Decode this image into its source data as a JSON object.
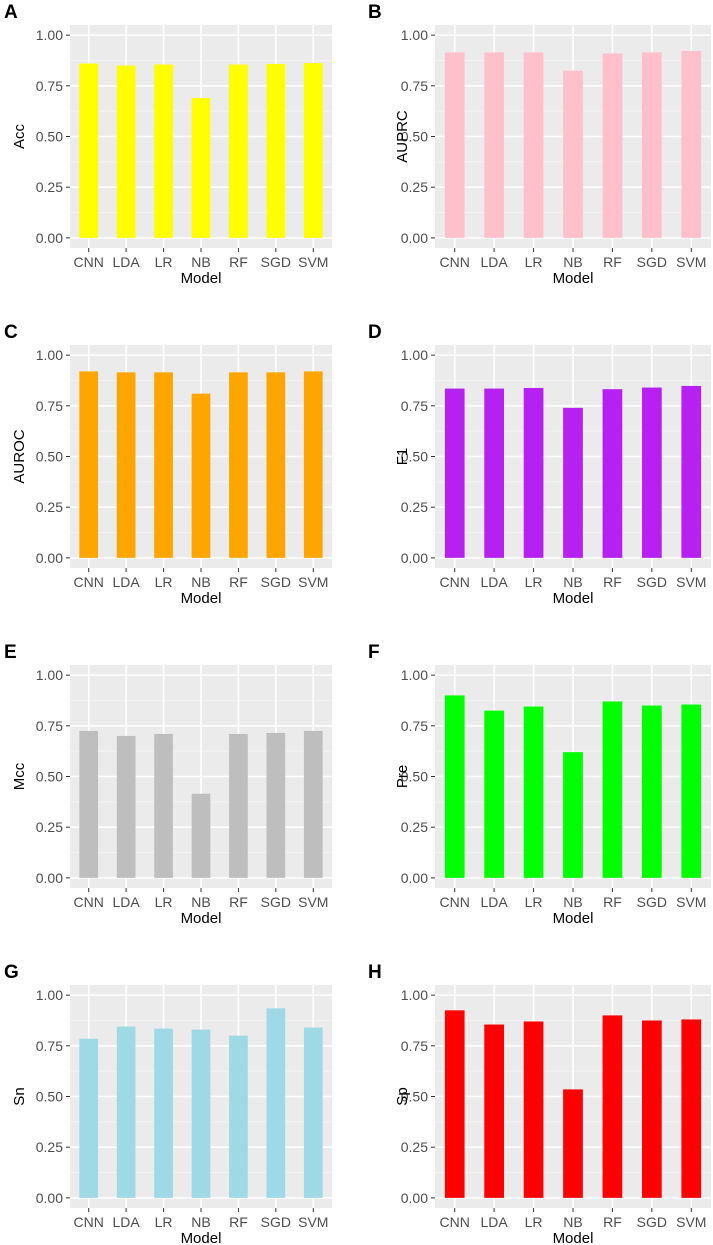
{
  "chart_data": [
    {
      "panel": "A",
      "type": "bar",
      "ylabel": "Acc",
      "xlabel": "Model",
      "color": "#ffff00",
      "categories": [
        "CNN",
        "LDA",
        "LR",
        "NB",
        "RF",
        "SGD",
        "SVM"
      ],
      "values": [
        0.86,
        0.85,
        0.855,
        0.69,
        0.855,
        0.858,
        0.862
      ],
      "ylim": [
        0,
        1
      ],
      "yticks": [
        "0.00",
        "0.25",
        "0.50",
        "0.75",
        "1.00"
      ]
    },
    {
      "panel": "B",
      "type": "bar",
      "ylabel": "AUPRC",
      "xlabel": "Model",
      "color": "#ffc0cb",
      "categories": [
        "CNN",
        "LDA",
        "LR",
        "NB",
        "RF",
        "SGD",
        "SVM"
      ],
      "values": [
        0.915,
        0.915,
        0.915,
        0.825,
        0.91,
        0.915,
        0.922
      ],
      "ylim": [
        0,
        1
      ],
      "yticks": [
        "0.00",
        "0.25",
        "0.50",
        "0.75",
        "1.00"
      ]
    },
    {
      "panel": "C",
      "type": "bar",
      "ylabel": "AUROC",
      "xlabel": "Model",
      "color": "#ffa500",
      "categories": [
        "CNN",
        "LDA",
        "LR",
        "NB",
        "RF",
        "SGD",
        "SVM"
      ],
      "values": [
        0.92,
        0.915,
        0.915,
        0.81,
        0.915,
        0.915,
        0.92
      ],
      "ylim": [
        0,
        1
      ],
      "yticks": [
        "0.00",
        "0.25",
        "0.50",
        "0.75",
        "1.00"
      ]
    },
    {
      "panel": "D",
      "type": "bar",
      "ylabel": "F1",
      "xlabel": "Model",
      "color": "#b620f0",
      "categories": [
        "CNN",
        "LDA",
        "LR",
        "NB",
        "RF",
        "SGD",
        "SVM"
      ],
      "values": [
        0.835,
        0.835,
        0.838,
        0.74,
        0.832,
        0.84,
        0.848
      ],
      "ylim": [
        0,
        1
      ],
      "yticks": [
        "0.00",
        "0.25",
        "0.50",
        "0.75",
        "1.00"
      ]
    },
    {
      "panel": "E",
      "type": "bar",
      "ylabel": "Mcc",
      "xlabel": "Model",
      "color": "#bebebe",
      "categories": [
        "CNN",
        "LDA",
        "LR",
        "NB",
        "RF",
        "SGD",
        "SVM"
      ],
      "values": [
        0.725,
        0.7,
        0.71,
        0.415,
        0.71,
        0.715,
        0.725
      ],
      "ylim": [
        0,
        1
      ],
      "yticks": [
        "0.00",
        "0.25",
        "0.50",
        "0.75",
        "1.00"
      ]
    },
    {
      "panel": "F",
      "type": "bar",
      "ylabel": "Pre",
      "xlabel": "Model",
      "color": "#00ff00",
      "categories": [
        "CNN",
        "LDA",
        "LR",
        "NB",
        "RF",
        "SGD",
        "SVM"
      ],
      "values": [
        0.9,
        0.825,
        0.845,
        0.62,
        0.87,
        0.85,
        0.855
      ],
      "ylim": [
        0,
        1
      ],
      "yticks": [
        "0.00",
        "0.25",
        "0.50",
        "0.75",
        "1.00"
      ]
    },
    {
      "panel": "G",
      "type": "bar",
      "ylabel": "Sn",
      "xlabel": "Model",
      "color": "#9ed9e6",
      "categories": [
        "CNN",
        "LDA",
        "LR",
        "NB",
        "RF",
        "SGD",
        "SVM"
      ],
      "values": [
        0.785,
        0.845,
        0.835,
        0.83,
        0.8,
        0.935,
        0.84
      ],
      "ylim": [
        0,
        1
      ],
      "yticks": [
        "0.00",
        "0.25",
        "0.50",
        "0.75",
        "1.00"
      ]
    },
    {
      "panel": "H",
      "type": "bar",
      "ylabel": "Sp",
      "xlabel": "Model",
      "color": "#ff0000",
      "categories": [
        "CNN",
        "LDA",
        "LR",
        "NB",
        "RF",
        "SGD",
        "SVM"
      ],
      "values": [
        0.925,
        0.855,
        0.87,
        0.535,
        0.9,
        0.875,
        0.88
      ],
      "ylim": [
        0,
        1
      ],
      "yticks": [
        "0.00",
        "0.25",
        "0.50",
        "0.75",
        "1.00"
      ]
    }
  ]
}
